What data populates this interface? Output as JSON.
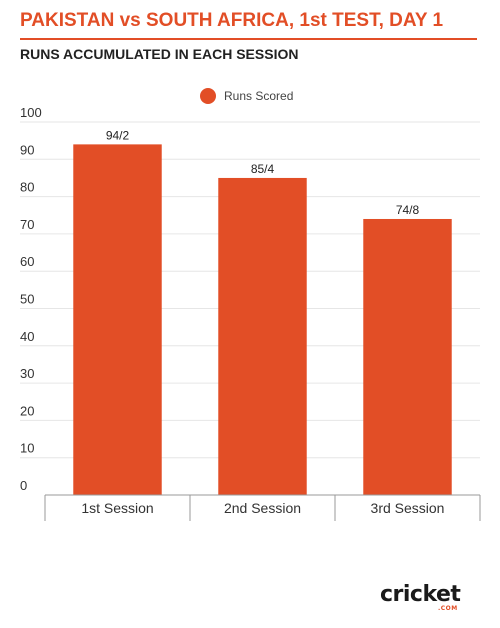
{
  "header": {
    "title": "PAKISTAN vs SOUTH AFRICA, 1st TEST, DAY 1",
    "subtitle": "RUNS ACCUMULATED IN EACH SESSION"
  },
  "legend": {
    "label": "Runs Scored",
    "placement": "top-center"
  },
  "branding": {
    "logo_text": "cricket",
    "logo_suffix": ".COM"
  },
  "colors": {
    "accent": "#e24e26",
    "bar": "#e24e26",
    "grid": "#e6e6e6"
  },
  "chart_data": {
    "type": "bar",
    "title": "PAKISTAN vs SOUTH AFRICA, 1st TEST, DAY 1",
    "subtitle": "RUNS ACCUMULATED IN EACH SESSION",
    "categories": [
      "1st Session",
      "2nd Session",
      "3rd Session"
    ],
    "series": [
      {
        "name": "Runs Scored",
        "values": [
          94,
          85,
          74
        ],
        "data_labels": [
          "94/2",
          "85/4",
          "74/8"
        ]
      }
    ],
    "y_ticks": [
      "0",
      "10",
      "20",
      "30",
      "40",
      "50",
      "60",
      "70",
      "80",
      "90",
      "100"
    ],
    "ylim": [
      0,
      100
    ],
    "grid": true,
    "legend": "top-center"
  }
}
